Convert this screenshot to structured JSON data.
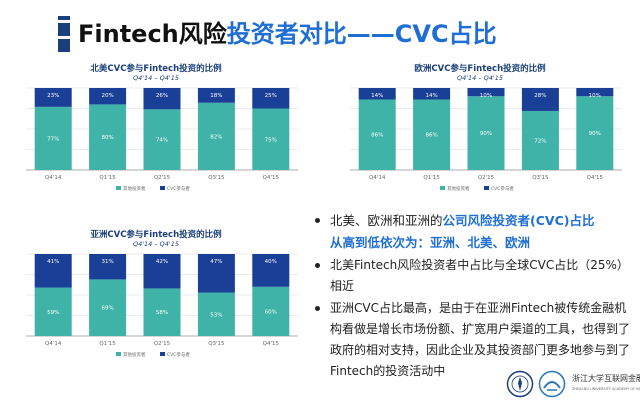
{
  "page": {
    "title_part1": "Fintech风险",
    "title_part2": "投资者对比——CVC占比"
  },
  "chart_data": [
    {
      "type": "bar",
      "stacked": true,
      "title": "北美CVC参与Fintech投资的比例",
      "subtitle": "Q4'14 – Q4'15",
      "categories": [
        "Q4'14",
        "Q1'15",
        "Q2'15",
        "Q3'15",
        "Q4'15"
      ],
      "series": [
        {
          "name": "其他投资者",
          "values": [
            77,
            80,
            74,
            82,
            75
          ],
          "labels": [
            "77%",
            "80%",
            "74%",
            "82%",
            "75%"
          ],
          "color": "#3fb3a8"
        },
        {
          "name": "CVC参与者",
          "values": [
            23,
            20,
            26,
            18,
            25
          ],
          "labels": [
            "23%",
            "20%",
            "26%",
            "18%",
            "25%"
          ],
          "color": "#1a3f96"
        }
      ],
      "ylim": [
        0,
        100
      ],
      "legend": "bottom",
      "grid": true
    },
    {
      "type": "bar",
      "stacked": true,
      "title": "欧洲CVC参与Fintech投资的比例",
      "subtitle": "Q4'14 – Q4'15",
      "categories": [
        "Q4'14",
        "Q1'15",
        "Q2'15",
        "Q3'15",
        "Q4'15"
      ],
      "series": [
        {
          "name": "其他投资者",
          "values": [
            86,
            86,
            90,
            72,
            90
          ],
          "labels": [
            "86%",
            "86%",
            "90%",
            "72%",
            "90%"
          ],
          "color": "#3fb3a8"
        },
        {
          "name": "CVC参与者",
          "values": [
            14,
            14,
            10,
            28,
            10
          ],
          "labels": [
            "14%",
            "14%",
            "10%",
            "28%",
            "10%"
          ],
          "color": "#1a3f96"
        }
      ],
      "ylim": [
        0,
        100
      ],
      "legend": "bottom",
      "grid": true
    },
    {
      "type": "bar",
      "stacked": true,
      "title": "亚洲CVC参与Fintech投资的比例",
      "subtitle": "Q4'14 – Q4'15",
      "categories": [
        "Q4'14",
        "Q1'15",
        "Q2'15",
        "Q3'15",
        "Q4'15"
      ],
      "series": [
        {
          "name": "其他投资者",
          "values": [
            59,
            69,
            58,
            53,
            60
          ],
          "labels": [
            "59%",
            "69%",
            "58%",
            "53%",
            "60%"
          ],
          "color": "#3fb3a8"
        },
        {
          "name": "CVC参与者",
          "values": [
            41,
            31,
            42,
            47,
            40
          ],
          "labels": [
            "41%",
            "31%",
            "42%",
            "47%",
            "40%"
          ],
          "color": "#1a3f96"
        }
      ],
      "ylim": [
        0,
        100
      ],
      "legend": "bottom",
      "grid": true
    }
  ],
  "bullets": {
    "b1_pre": "北美、欧洲和亚洲的",
    "b1_hl1": "公司风险投资者(CVC)占比",
    "b1_hl2": "从高到低依次为：亚洲、北美、欧洲",
    "b2": "北美Fintech风险投资者中占比与全球CVC占比（25%）相近",
    "b3": "亚洲CVC占比最高，是由于在亚洲Fintech被传统金融机构看做是增长市场份额、扩宽用户渠道的工具，也得到了政府的相对支持，因此企业及其投资部门更多地参与到了Fintech的投资活动中"
  },
  "footer": {
    "logo_text_line1": "浙江大学互联网金融研究院",
    "logo_text_line2": "ZHEJIANG UNIVERSITY ACADEMY OF INTERNET FINANCE"
  },
  "colors": {
    "accent": "#1f6ed4",
    "dark_blue": "#1a3f7a",
    "teal": "#3fb3a8"
  }
}
